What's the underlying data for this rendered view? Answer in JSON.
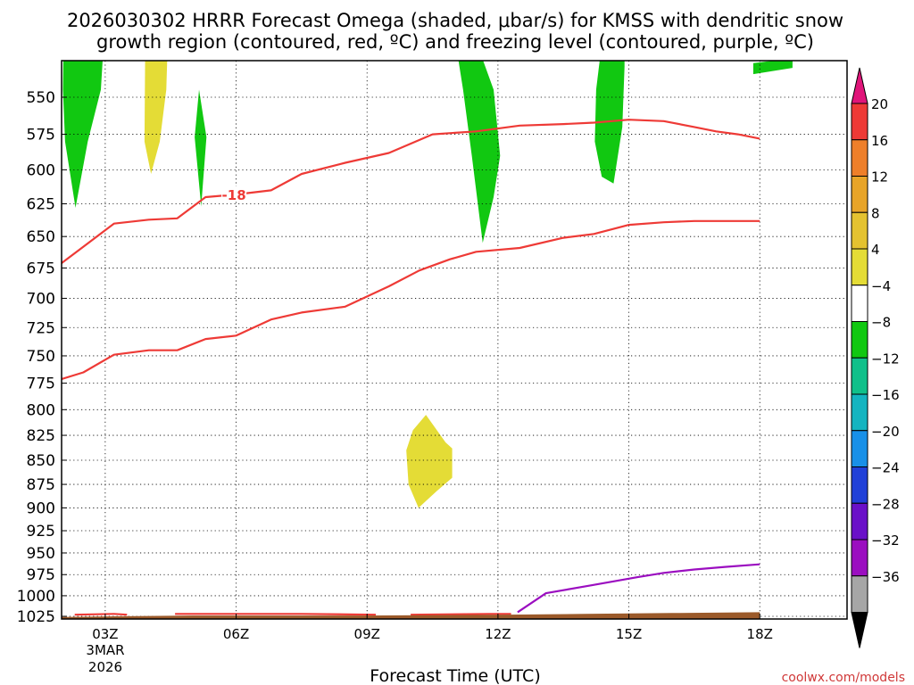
{
  "chart_data": {
    "type": "area",
    "title_line1": "2026030302 HRRR Forecast Omega (shaded, μbar/s) for KMSS with dendritic snow",
    "title_line2": "growth region (contoured, red, ºC) and freezing level (contoured, purple, ºC)",
    "xlabel": "Forecast Time (UTC)",
    "x_ticks": [
      {
        "hour": 3,
        "label": "03Z"
      },
      {
        "hour": 6,
        "label": "06Z"
      },
      {
        "hour": 9,
        "label": "09Z"
      },
      {
        "hour": 12,
        "label": "12Z"
      },
      {
        "hour": 15,
        "label": "15Z"
      },
      {
        "hour": 18,
        "label": "18Z"
      }
    ],
    "date_label": [
      "3MAR",
      "2026"
    ],
    "xlim": [
      2,
      20
    ],
    "y_ticks": [
      550,
      575,
      600,
      625,
      650,
      675,
      700,
      725,
      750,
      775,
      800,
      825,
      850,
      875,
      900,
      925,
      950,
      975,
      1000,
      1025
    ],
    "ylim_hpa": [
      520,
      1030
    ],
    "grid": "dotted",
    "colorbar": {
      "tick_labels": [
        "20",
        "16",
        "12",
        "8",
        "4",
        "−4",
        "−8",
        "−12",
        "−16",
        "−20",
        "−24",
        "−28",
        "−32",
        "−36"
      ],
      "colors": [
        "#ee3a36",
        "#ee7f2a",
        "#e8a428",
        "#e4c230",
        "#e4dc36",
        "#ffffff",
        "#11c811",
        "#10c08a",
        "#14b4c0",
        "#1890e8",
        "#2040d8",
        "#6a10c8",
        "#9b0ec0",
        "#a6a6a6"
      ],
      "top_color": "#e0157a",
      "bottom_color": "#000000"
    },
    "omega_regions": [
      {
        "band": "-4 to -8",
        "color": "#11c811",
        "points": [
          [
            2.4,
            500
          ],
          [
            3.0,
            500
          ],
          [
            2.9,
            545
          ],
          [
            2.6,
            580
          ],
          [
            2.32,
            628
          ],
          [
            2.08,
            580
          ],
          [
            2.03,
            545
          ],
          [
            2.05,
            500
          ]
        ]
      },
      {
        "band": "-4 to -8",
        "color": "#11c811",
        "points": [
          [
            5.15,
            545
          ],
          [
            5.32,
            577
          ],
          [
            5.2,
            627
          ],
          [
            5.05,
            577
          ]
        ]
      },
      {
        "band": "-4 to -8",
        "color": "#11c811",
        "points": [
          [
            11.0,
            510
          ],
          [
            11.4,
            507
          ],
          [
            11.9,
            545
          ],
          [
            12.05,
            590
          ],
          [
            11.9,
            620
          ],
          [
            11.65,
            655
          ],
          [
            11.4,
            590
          ],
          [
            11.2,
            545
          ]
        ]
      },
      {
        "band": "-4 to -8",
        "color": "#11c811",
        "points": [
          [
            14.45,
            500
          ],
          [
            14.9,
            500
          ],
          [
            14.9,
            530
          ],
          [
            14.85,
            570
          ],
          [
            14.65,
            610
          ],
          [
            14.38,
            605
          ],
          [
            14.22,
            580
          ],
          [
            14.25,
            545
          ]
        ]
      },
      {
        "band": "-4 to -8",
        "color": "#11c811",
        "points": [
          [
            17.85,
            528
          ],
          [
            18.75,
            525
          ],
          [
            18.75,
            531
          ],
          [
            17.85,
            535
          ]
        ]
      },
      {
        "band": "4 to 8",
        "color": "#e4dc36",
        "points": [
          [
            3.92,
            500
          ],
          [
            4.45,
            500
          ],
          [
            4.4,
            545
          ],
          [
            4.25,
            580
          ],
          [
            4.05,
            603
          ],
          [
            3.9,
            580
          ]
        ]
      },
      {
        "band": "4 to 8",
        "color": "#e4dc36",
        "points": [
          [
            10.35,
            805
          ],
          [
            10.8,
            832
          ],
          [
            10.95,
            838
          ],
          [
            10.95,
            868
          ],
          [
            10.6,
            882
          ],
          [
            10.18,
            900
          ],
          [
            9.95,
            875
          ],
          [
            9.9,
            840
          ],
          [
            10.05,
            820
          ]
        ]
      }
    ],
    "dendritic_growth_contours": [
      {
        "label": "-18",
        "color": "#ee3a36",
        "points": [
          [
            1.85,
            675
          ],
          [
            2.5,
            658
          ],
          [
            3.2,
            640
          ],
          [
            4.0,
            637
          ],
          [
            4.65,
            636
          ],
          [
            5.3,
            620
          ],
          [
            6.0,
            618
          ],
          [
            6.8,
            615
          ],
          [
            7.5,
            603
          ],
          [
            8.5,
            595
          ],
          [
            9.5,
            588
          ],
          [
            10.5,
            575
          ],
          [
            11.5,
            573
          ],
          [
            12.5,
            569
          ],
          [
            13.5,
            568
          ],
          [
            14.2,
            567
          ],
          [
            15.0,
            565
          ],
          [
            15.8,
            566
          ],
          [
            16.5,
            570
          ],
          [
            17.0,
            573
          ],
          [
            17.5,
            575
          ],
          [
            18.0,
            578
          ]
        ]
      },
      {
        "label": "",
        "color": "#ee3a36",
        "points": [
          [
            1.85,
            773
          ],
          [
            2.5,
            765
          ],
          [
            3.2,
            749
          ],
          [
            4.0,
            745
          ],
          [
            4.65,
            745
          ],
          [
            5.3,
            735
          ],
          [
            6.0,
            732
          ],
          [
            6.8,
            718
          ],
          [
            7.5,
            712
          ],
          [
            8.5,
            707
          ],
          [
            9.5,
            690
          ],
          [
            10.2,
            677
          ],
          [
            10.9,
            668
          ],
          [
            11.5,
            662
          ],
          [
            12.5,
            659
          ],
          [
            13.5,
            651
          ],
          [
            14.2,
            648
          ],
          [
            15.0,
            641
          ],
          [
            15.8,
            639
          ],
          [
            16.5,
            638
          ],
          [
            17.0,
            638
          ],
          [
            17.5,
            638
          ],
          [
            18.0,
            638
          ]
        ]
      },
      {
        "label": "",
        "color": "#ee3a36",
        "points": [
          [
            2.3,
            1023
          ],
          [
            3.2,
            1022
          ],
          [
            3.5,
            1023
          ]
        ]
      },
      {
        "label": "",
        "color": "#ee3a36",
        "points": [
          [
            4.6,
            1022
          ],
          [
            6.5,
            1022
          ],
          [
            7.5,
            1022
          ],
          [
            9.2,
            1023
          ]
        ]
      },
      {
        "label": "",
        "color": "#ee3a36",
        "points": [
          [
            10.0,
            1023
          ],
          [
            11.8,
            1022
          ],
          [
            12.3,
            1022
          ]
        ]
      }
    ],
    "freezing_level_contour": {
      "color": "#9b0ec0",
      "points": [
        [
          12.45,
          1020
        ],
        [
          13.1,
          997
        ],
        [
          14.1,
          988
        ],
        [
          15.2,
          978
        ],
        [
          15.8,
          973
        ],
        [
          16.5,
          969
        ],
        [
          17.2,
          966
        ],
        [
          18.0,
          963
        ]
      ]
    },
    "terrain": {
      "color": "#9b5a2a",
      "points": [
        [
          1.85,
          1026
        ],
        [
          3.2,
          1025
        ],
        [
          5.0,
          1024
        ],
        [
          9.0,
          1024
        ],
        [
          12.0,
          1023
        ],
        [
          14.0,
          1022
        ],
        [
          16.0,
          1021
        ],
        [
          18.0,
          1020
        ]
      ]
    }
  },
  "credit": "coolwx.com/models"
}
